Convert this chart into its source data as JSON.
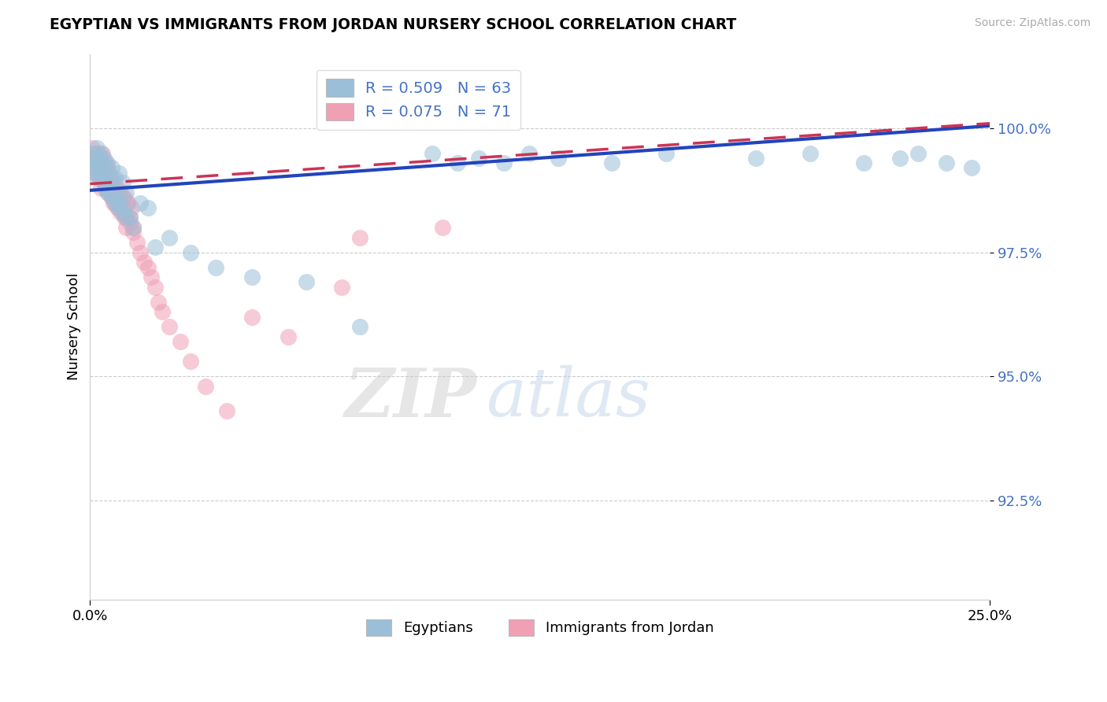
{
  "title": "EGYPTIAN VS IMMIGRANTS FROM JORDAN NURSERY SCHOOL CORRELATION CHART",
  "source": "Source: ZipAtlas.com",
  "ylabel": "Nursery School",
  "yticks": [
    92.5,
    95.0,
    97.5,
    100.0
  ],
  "ytick_labels": [
    "92.5%",
    "95.0%",
    "97.5%",
    "100.0%"
  ],
  "xmin": 0.0,
  "xmax": 25.0,
  "ymin": 90.5,
  "ymax": 101.5,
  "blue_R": 0.509,
  "blue_N": 63,
  "pink_R": 0.075,
  "pink_N": 71,
  "blue_color": "#9bbfd8",
  "pink_color": "#f0a0b5",
  "blue_line_color": "#2244bb",
  "pink_line_color": "#cc3355",
  "legend_label_blue": "Egyptians",
  "legend_label_pink": "Immigrants from Jordan",
  "watermark_zip": "ZIP",
  "watermark_atlas": "atlas",
  "blue_trend_x0": 0.0,
  "blue_trend_y0": 98.75,
  "blue_trend_x1": 25.0,
  "blue_trend_y1": 100.05,
  "pink_trend_x0": 0.0,
  "pink_trend_y0": 98.88,
  "pink_trend_x1": 25.0,
  "pink_trend_y1": 100.1,
  "blue_scatter_x": [
    0.05,
    0.08,
    0.1,
    0.12,
    0.15,
    0.18,
    0.2,
    0.22,
    0.25,
    0.28,
    0.3,
    0.33,
    0.35,
    0.38,
    0.4,
    0.42,
    0.45,
    0.48,
    0.5,
    0.55,
    0.6,
    0.65,
    0.7,
    0.75,
    0.8,
    0.85,
    0.9,
    0.95,
    1.0,
    1.1,
    1.2,
    1.4,
    1.6,
    1.8,
    2.2,
    2.8,
    3.5,
    4.5,
    6.0,
    7.5,
    9.5,
    10.2,
    10.8,
    11.5,
    12.2,
    13.0,
    14.5,
    16.0,
    18.5,
    20.0,
    21.5,
    22.5,
    23.0,
    23.8,
    24.5,
    0.3,
    0.4,
    0.5,
    0.6,
    0.7,
    0.8,
    0.9,
    1.0
  ],
  "blue_scatter_y": [
    99.3,
    99.5,
    99.2,
    99.4,
    99.1,
    99.6,
    99.3,
    99.0,
    99.4,
    99.2,
    99.5,
    99.3,
    99.1,
    99.4,
    99.2,
    99.0,
    98.8,
    99.3,
    99.1,
    98.9,
    99.2,
    98.7,
    99.0,
    98.5,
    99.1,
    98.6,
    98.9,
    98.4,
    98.7,
    98.2,
    98.0,
    98.5,
    98.4,
    97.6,
    97.8,
    97.5,
    97.2,
    97.0,
    96.9,
    96.0,
    99.5,
    99.3,
    99.4,
    99.3,
    99.5,
    99.4,
    99.3,
    99.5,
    99.4,
    99.5,
    99.3,
    99.4,
    99.5,
    99.3,
    99.2,
    99.0,
    98.8,
    98.7,
    98.6,
    98.5,
    98.4,
    98.3,
    98.2
  ],
  "pink_scatter_x": [
    0.03,
    0.06,
    0.08,
    0.1,
    0.12,
    0.15,
    0.18,
    0.2,
    0.22,
    0.25,
    0.28,
    0.3,
    0.33,
    0.35,
    0.38,
    0.4,
    0.43,
    0.45,
    0.48,
    0.5,
    0.55,
    0.6,
    0.65,
    0.7,
    0.75,
    0.8,
    0.85,
    0.9,
    0.95,
    1.0,
    1.05,
    1.1,
    1.2,
    1.3,
    1.4,
    1.5,
    1.6,
    1.7,
    1.8,
    1.9,
    2.0,
    2.2,
    2.5,
    2.8,
    3.2,
    3.8,
    4.5,
    5.5,
    7.0,
    0.25,
    0.3,
    0.35,
    0.4,
    0.45,
    0.5,
    0.55,
    0.6,
    0.65,
    0.7,
    0.75,
    0.8,
    0.85,
    0.9,
    0.95,
    1.0,
    1.05,
    1.1,
    1.15,
    1.2,
    7.5,
    9.8
  ],
  "pink_scatter_y": [
    99.4,
    99.6,
    99.3,
    99.5,
    99.2,
    99.4,
    99.1,
    99.3,
    99.5,
    99.2,
    99.0,
    99.4,
    99.2,
    99.5,
    99.1,
    98.9,
    99.3,
    99.0,
    98.8,
    99.2,
    98.7,
    99.0,
    98.5,
    98.8,
    98.4,
    98.7,
    98.3,
    98.6,
    98.2,
    98.0,
    98.5,
    98.2,
    97.9,
    97.7,
    97.5,
    97.3,
    97.2,
    97.0,
    96.8,
    96.5,
    96.3,
    96.0,
    95.7,
    95.3,
    94.8,
    94.3,
    96.2,
    95.8,
    96.8,
    99.0,
    98.8,
    99.1,
    98.9,
    99.2,
    98.7,
    99.0,
    98.6,
    98.9,
    98.5,
    98.8,
    98.4,
    98.7,
    98.3,
    98.6,
    98.2,
    98.5,
    98.1,
    98.4,
    98.0,
    97.8,
    98.0
  ]
}
